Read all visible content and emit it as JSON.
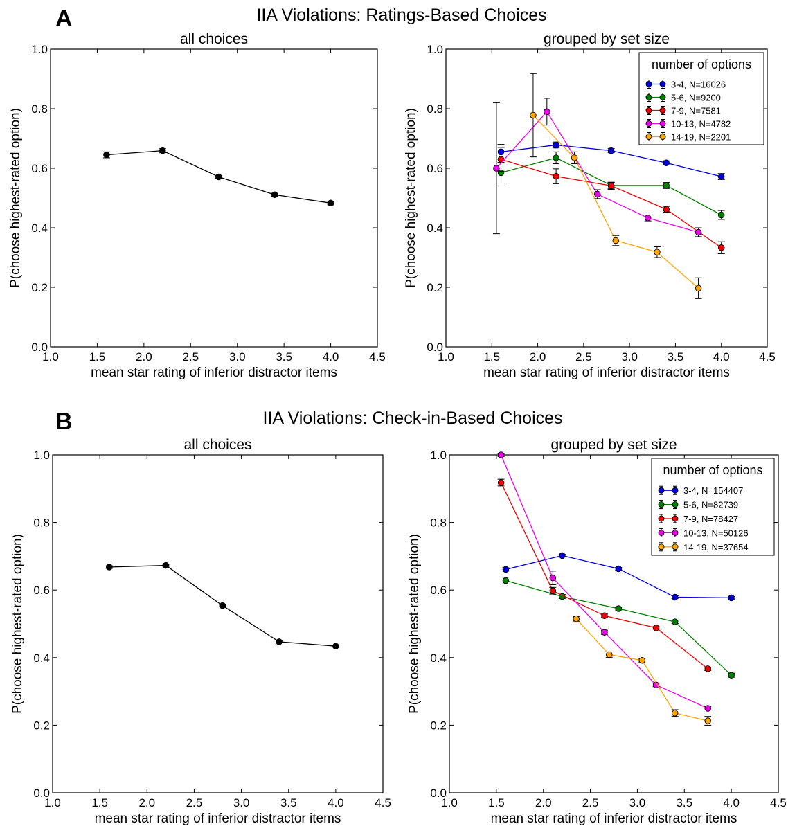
{
  "figure": {
    "panels": [
      {
        "letter": "A",
        "title": "IIA Violations: Ratings-Based Choices"
      },
      {
        "letter": "B",
        "title": "IIA Violations: Check-in-Based Choices"
      }
    ]
  },
  "chart_data": [
    {
      "type": "line",
      "title": "all choices",
      "xlabel": "mean star rating of inferior distractor items",
      "ylabel": "P(choose highest-rated option)",
      "xlim": [
        1.0,
        4.5
      ],
      "ylim": [
        0.0,
        1.0
      ],
      "xticks": [
        "1.0",
        "1.5",
        "2.0",
        "2.5",
        "3.0",
        "3.5",
        "4.0",
        "4.5"
      ],
      "yticks": [
        "0.0",
        "0.2",
        "0.4",
        "0.6",
        "0.8",
        "1.0"
      ],
      "grid": false,
      "series": [
        {
          "color": "#000000",
          "points": [
            [
              1.6,
              0.645,
              0.01
            ],
            [
              2.2,
              0.659,
              0.007
            ],
            [
              2.8,
              0.571,
              0.005
            ],
            [
              3.4,
              0.511,
              0.005
            ],
            [
              4.0,
              0.483,
              0.006
            ]
          ]
        }
      ]
    },
    {
      "type": "line",
      "title": "grouped by set size",
      "xlabel": "mean star rating of inferior distractor items",
      "ylabel": "P(choose highest-rated option)",
      "xlim": [
        1.0,
        4.5
      ],
      "ylim": [
        0.0,
        1.0
      ],
      "xticks": [
        "1.0",
        "1.5",
        "2.0",
        "2.5",
        "3.0",
        "3.5",
        "4.0",
        "4.5"
      ],
      "yticks": [
        "0.0",
        "0.2",
        "0.4",
        "0.6",
        "0.8",
        "1.0"
      ],
      "grid": false,
      "legend": {
        "title": "number of options",
        "placement": "top-right"
      },
      "series": [
        {
          "name": "3-4, N=16026",
          "color": "#0000dd",
          "points": [
            [
              1.6,
              0.655,
              0.025
            ],
            [
              2.2,
              0.678,
              0.01
            ],
            [
              2.8,
              0.659,
              0.007
            ],
            [
              3.4,
              0.618,
              0.007
            ],
            [
              4.0,
              0.572,
              0.01
            ]
          ]
        },
        {
          "name": "5-6, N=9200",
          "color": "#008000",
          "points": [
            [
              1.6,
              0.585,
              0.035
            ],
            [
              2.2,
              0.635,
              0.02
            ],
            [
              2.8,
              0.542,
              0.01
            ],
            [
              3.4,
              0.542,
              0.01
            ],
            [
              4.0,
              0.443,
              0.015
            ]
          ]
        },
        {
          "name": "7-9, N=7581",
          "color": "#ee0000",
          "points": [
            [
              1.6,
              0.63,
              0.04
            ],
            [
              2.2,
              0.573,
              0.025
            ],
            [
              2.8,
              0.541,
              0.012
            ],
            [
              3.4,
              0.462,
              0.01
            ],
            [
              4.0,
              0.333,
              0.02
            ]
          ]
        },
        {
          "name": "10-13, N=4782",
          "color": "#ee00ee",
          "points": [
            [
              1.55,
              0.6,
              0.22
            ],
            [
              2.1,
              0.79,
              0.045
            ],
            [
              2.65,
              0.513,
              0.015
            ],
            [
              3.2,
              0.433,
              0.01
            ],
            [
              3.75,
              0.385,
              0.015
            ]
          ]
        },
        {
          "name": "14-19, N=2201",
          "color": "#ffa500",
          "points": [
            [
              1.95,
              0.778,
              0.14
            ],
            [
              2.4,
              0.635,
              0.02
            ],
            [
              2.85,
              0.357,
              0.017
            ],
            [
              3.3,
              0.318,
              0.018
            ],
            [
              3.75,
              0.197,
              0.035
            ]
          ]
        }
      ]
    },
    {
      "type": "line",
      "title": "all choices",
      "xlabel": "mean star rating of inferior distractor items",
      "ylabel": "P(choose highest-rated option)",
      "xlim": [
        1.0,
        4.5
      ],
      "ylim": [
        0.0,
        1.0
      ],
      "xticks": [
        "1.0",
        "1.5",
        "2.0",
        "2.5",
        "3.0",
        "3.5",
        "4.0",
        "4.5"
      ],
      "yticks": [
        "0.0",
        "0.2",
        "0.4",
        "0.6",
        "0.8",
        "1.0"
      ],
      "grid": false,
      "series": [
        {
          "color": "#000000",
          "points": [
            [
              1.6,
              0.668,
              0.004
            ],
            [
              2.2,
              0.673,
              0.003
            ],
            [
              2.8,
              0.554,
              0.003
            ],
            [
              3.4,
              0.447,
              0.003
            ],
            [
              4.0,
              0.434,
              0.003
            ]
          ]
        }
      ]
    },
    {
      "type": "line",
      "title": "grouped by set size",
      "xlabel": "mean star rating of inferior distractor items",
      "ylabel": "P(choose highest-rated option)",
      "xlim": [
        1.0,
        4.5
      ],
      "ylim": [
        0.0,
        1.0
      ],
      "xticks": [
        "1.0",
        "1.5",
        "2.0",
        "2.5",
        "3.0",
        "3.5",
        "4.0",
        "4.5"
      ],
      "yticks": [
        "0.0",
        "0.2",
        "0.4",
        "0.6",
        "0.8",
        "1.0"
      ],
      "grid": false,
      "legend": {
        "title": "number of options",
        "placement": "top-right"
      },
      "series": [
        {
          "name": "3-4, N=154407",
          "color": "#0000dd",
          "points": [
            [
              1.6,
              0.661,
              0.005
            ],
            [
              2.2,
              0.702,
              0.004
            ],
            [
              2.8,
              0.663,
              0.004
            ],
            [
              3.4,
              0.579,
              0.004
            ],
            [
              4.0,
              0.577,
              0.004
            ]
          ]
        },
        {
          "name": "5-6, N=82739",
          "color": "#008000",
          "points": [
            [
              1.6,
              0.628,
              0.01
            ],
            [
              2.2,
              0.581,
              0.006
            ],
            [
              2.8,
              0.545,
              0.004
            ],
            [
              3.4,
              0.506,
              0.005
            ],
            [
              4.0,
              0.348,
              0.006
            ]
          ]
        },
        {
          "name": "7-9, N=78427",
          "color": "#ee0000",
          "points": [
            [
              1.55,
              0.918,
              0.01
            ],
            [
              2.1,
              0.598,
              0.01
            ],
            [
              2.65,
              0.524,
              0.005
            ],
            [
              3.2,
              0.488,
              0.004
            ],
            [
              3.75,
              0.367,
              0.005
            ]
          ]
        },
        {
          "name": "10-13, N=50126",
          "color": "#ee00ee",
          "points": [
            [
              1.55,
              1.0,
              0.005
            ],
            [
              2.1,
              0.636,
              0.02
            ],
            [
              2.65,
              0.475,
              0.006
            ],
            [
              3.2,
              0.319,
              0.005
            ],
            [
              3.75,
              0.25,
              0.005
            ]
          ]
        },
        {
          "name": "14-19, N=37654",
          "color": "#ffa500",
          "points": [
            [
              2.35,
              0.515,
              0.007
            ],
            [
              2.7,
              0.409,
              0.008
            ],
            [
              3.05,
              0.392,
              0.005
            ],
            [
              3.4,
              0.236,
              0.01
            ],
            [
              3.75,
              0.213,
              0.013
            ]
          ]
        }
      ]
    }
  ]
}
